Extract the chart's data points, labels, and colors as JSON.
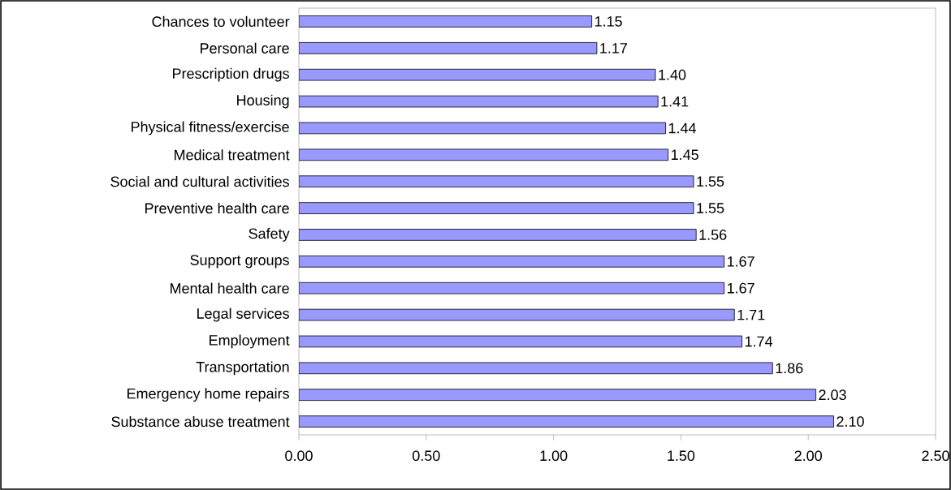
{
  "chart_data": {
    "type": "bar",
    "orientation": "horizontal",
    "categories": [
      "Chances to volunteer",
      "Personal care",
      "Prescription drugs",
      "Housing",
      "Physical fitness/exercise",
      "Medical treatment",
      "Social and cultural activities",
      "Preventive health care",
      "Safety",
      "Support groups",
      "Mental health care",
      "Legal services",
      "Employment",
      "Transportation",
      "Emergency home repairs",
      "Substance abuse treatment"
    ],
    "values": [
      1.15,
      1.17,
      1.4,
      1.41,
      1.44,
      1.45,
      1.55,
      1.55,
      1.56,
      1.67,
      1.67,
      1.71,
      1.74,
      1.86,
      2.03,
      2.1
    ],
    "value_labels": [
      "1.15",
      "1.17",
      "1.40",
      "1.41",
      "1.44",
      "1.45",
      "1.55",
      "1.55",
      "1.56",
      "1.67",
      "1.67",
      "1.71",
      "1.74",
      "1.86",
      "2.03",
      "2.10"
    ],
    "color": "#9999ff",
    "xlim": [
      0,
      2.5
    ],
    "xticks": [
      {
        "value": 0,
        "label": "0.00"
      },
      {
        "value": 0.5,
        "label": "0.50"
      },
      {
        "value": 1,
        "label": "1.00"
      },
      {
        "value": 1.5,
        "label": "1.50"
      },
      {
        "value": 2,
        "label": "2.00"
      },
      {
        "value": 2.5,
        "label": "2.50"
      }
    ]
  }
}
